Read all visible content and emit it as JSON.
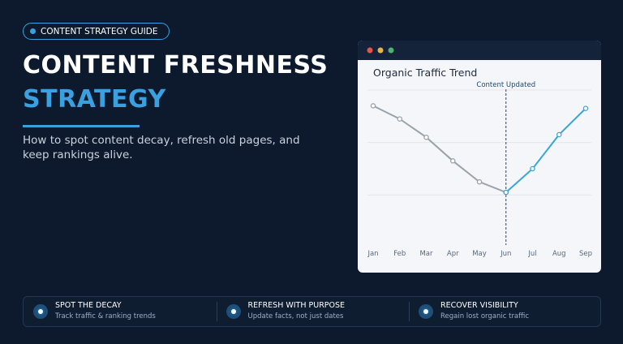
{
  "badge": "CONTENT STRATEGY GUIDE",
  "title_line1": "CONTENT FRESHNESS",
  "title_line2": "STRATEGY",
  "subtitle": "How to spot content decay, refresh old pages, and keep rankings alive.",
  "features": [
    {
      "title": "SPOT THE DECAY",
      "text": "Track traffic & ranking trends"
    },
    {
      "title": "REFRESH WITH PURPOSE",
      "text": "Update facts, not just dates"
    },
    {
      "title": "RECOVER VISIBILITY",
      "text": "Regain lost organic traffic"
    }
  ],
  "chart_data": {
    "type": "line",
    "title": "Organic Traffic Trend",
    "categories": [
      "Jan",
      "Feb",
      "Mar",
      "Apr",
      "May",
      "Jun",
      "Jul",
      "Aug",
      "Sep"
    ],
    "series": [
      {
        "color": "#9aa3ab",
        "values": [
          54,
          49,
          42,
          33,
          25,
          21,
          null,
          null,
          null
        ]
      },
      {
        "color": "#3aa6d6",
        "values": [
          null,
          null,
          null,
          null,
          null,
          21,
          30,
          43,
          53
        ]
      }
    ],
    "ylim": [
      0,
      60
    ],
    "yticks": [
      20,
      40,
      60
    ],
    "grid": true,
    "annotation": {
      "label": "Content Updated",
      "category": "Jun"
    }
  }
}
